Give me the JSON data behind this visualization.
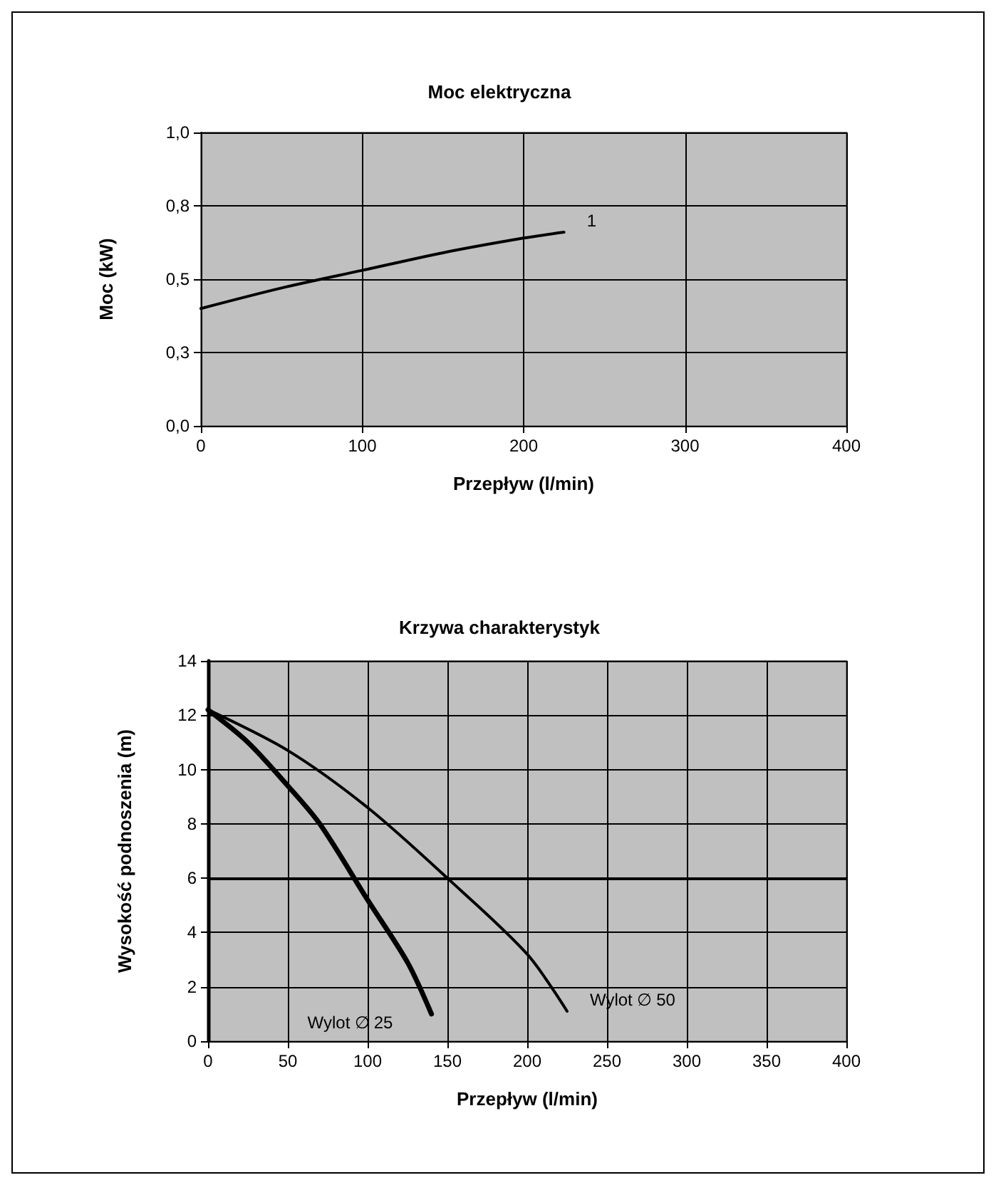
{
  "chart_data": [
    {
      "type": "line",
      "title": "Moc elektryczna",
      "xlabel": "Przepływ (l/min)",
      "ylabel": "Moc (kW)",
      "xlim": [
        0,
        400
      ],
      "xticks": [
        0,
        100,
        200,
        300,
        400
      ],
      "ylim": [
        0,
        1
      ],
      "yticks": [
        {
          "value": 0,
          "label": "0,0"
        },
        {
          "value": 0.25,
          "label": "0,3"
        },
        {
          "value": 0.5,
          "label": "0,5"
        },
        {
          "value": 0.75,
          "label": "0,8"
        },
        {
          "value": 1,
          "label": "1,0"
        }
      ],
      "grid": true,
      "legend": false,
      "marker": "none",
      "line_style": "solid",
      "series": [
        {
          "name": "1",
          "color": "#000000",
          "x": [
            0,
            50,
            100,
            150,
            200,
            225
          ],
          "values": [
            0.4,
            0.47,
            0.53,
            0.59,
            0.64,
            0.66
          ]
        }
      ]
    },
    {
      "type": "line",
      "title": "Krzywa charakterystyk",
      "xlabel": "Przepływ (l/min)",
      "ylabel": "Wysokość podnoszenia (m)",
      "xlim": [
        0,
        400
      ],
      "xticks": [
        0,
        50,
        100,
        150,
        200,
        250,
        300,
        350,
        400
      ],
      "ylim": [
        0,
        14
      ],
      "yticks": [
        0,
        2,
        4,
        6,
        8,
        10,
        12,
        14
      ],
      "grid": true,
      "legend": false,
      "marker": "none",
      "line_style": "solid",
      "ref_lines": [
        {
          "axis": "y",
          "value": 6,
          "color": "#000000"
        }
      ],
      "series": [
        {
          "name": "Wylot ∅ 25",
          "color": "#000000",
          "x": [
            0,
            25,
            50,
            70,
            100,
            125,
            140
          ],
          "values": [
            12.2,
            11.0,
            9.4,
            8.0,
            5.2,
            2.9,
            1.0
          ]
        },
        {
          "name": "Wylot ∅ 50",
          "color": "#000000",
          "x": [
            0,
            50,
            100,
            150,
            200,
            225
          ],
          "values": [
            12.2,
            10.7,
            8.6,
            6.0,
            3.2,
            1.1
          ]
        }
      ]
    }
  ]
}
